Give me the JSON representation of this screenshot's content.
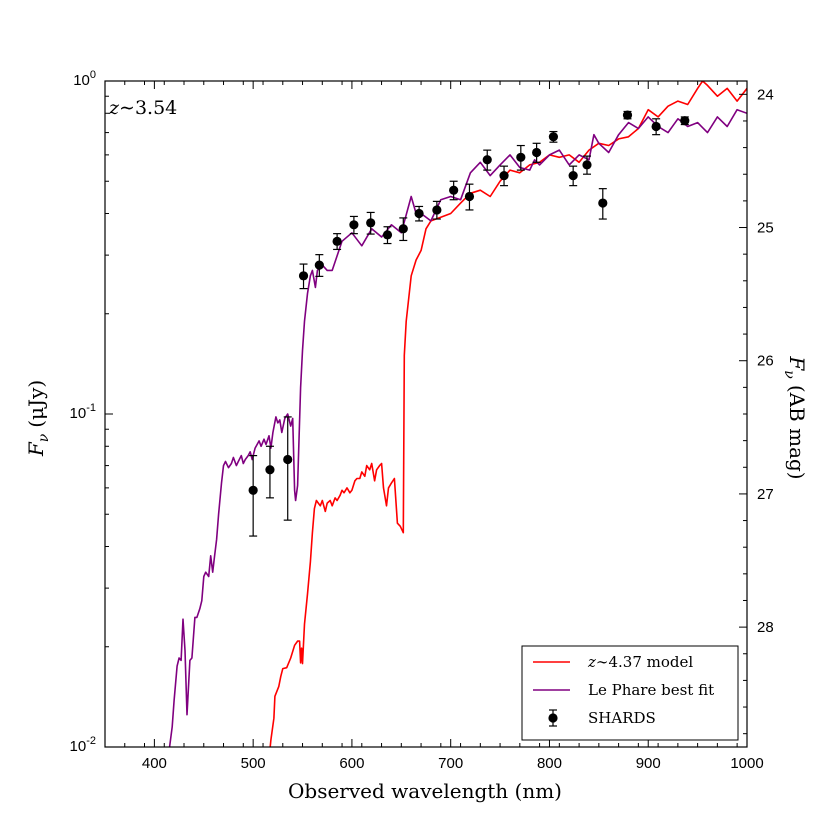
{
  "chart_data": {
    "type": "line",
    "xlabel": "Observed wavelength (nm)",
    "ylabel_left_main": "F",
    "ylabel_left_sub": "ν",
    "ylabel_left_unit": "(μJy)",
    "ylabel_right_main": "F",
    "ylabel_right_sub": "ν",
    "ylabel_right_unit": "(AB mag)",
    "xlim": [
      350,
      1000
    ],
    "ylim": [
      0.01,
      1.0
    ],
    "yscale": "log",
    "right_ylim_mag": [
      28.9,
      23.9
    ],
    "xticks": [
      400,
      500,
      600,
      700,
      800,
      900,
      1000
    ],
    "yticks_left": [
      {
        "value": 1.0,
        "base": "10",
        "exp": "0"
      },
      {
        "value": 0.1,
        "base": "10",
        "exp": "-1"
      },
      {
        "value": 0.01,
        "base": "10",
        "exp": "-2"
      }
    ],
    "yticks_right": [
      24,
      25,
      26,
      27,
      28
    ],
    "annotation": {
      "prefix": "z",
      "tilde": "∼",
      "value": "3.54"
    },
    "legend": [
      {
        "label_prefix": "z",
        "label": "∼4.37 model",
        "color": "#ff0000",
        "kind": "line"
      },
      {
        "label_prefix": "",
        "label": "Le Phare best fit",
        "color": "#800080",
        "kind": "line"
      },
      {
        "label_prefix": "",
        "label": "SHARDS",
        "color": "#000000",
        "kind": "errorbar"
      }
    ],
    "series": [
      {
        "name": "z~4.37 model",
        "color": "#ff0000",
        "x": [
          517,
          518,
          521,
          522,
          526,
          528,
          530,
          534,
          538,
          542,
          545,
          547,
          548,
          549,
          550,
          552,
          555,
          558,
          560,
          562,
          564,
          566,
          568,
          570,
          573,
          575,
          578,
          580,
          583,
          585,
          588,
          590,
          592,
          595,
          598,
          600,
          603,
          605,
          608,
          610,
          613,
          615,
          618,
          620,
          623,
          625,
          628,
          630,
          632,
          635,
          637,
          640,
          643,
          646,
          649,
          652,
          653,
          655,
          660,
          665,
          670,
          675,
          680,
          690,
          700,
          710,
          720,
          730,
          740,
          750,
          760,
          770,
          780,
          790,
          800,
          810,
          820,
          830,
          840,
          850,
          860,
          870,
          880,
          890,
          900,
          910,
          920,
          930,
          940,
          950,
          955,
          960,
          970,
          980,
          990,
          1000
        ],
        "y": [
          0.0098,
          0.0105,
          0.0122,
          0.0142,
          0.0152,
          0.0163,
          0.0172,
          0.0173,
          0.0185,
          0.0202,
          0.0208,
          0.0208,
          0.0179,
          0.0198,
          0.0178,
          0.0234,
          0.0288,
          0.036,
          0.044,
          0.052,
          0.055,
          0.054,
          0.053,
          0.055,
          0.051,
          0.054,
          0.055,
          0.053,
          0.056,
          0.055,
          0.057,
          0.059,
          0.058,
          0.06,
          0.058,
          0.059,
          0.063,
          0.064,
          0.064,
          0.067,
          0.065,
          0.07,
          0.068,
          0.071,
          0.063,
          0.068,
          0.07,
          0.071,
          0.06,
          0.053,
          0.06,
          0.062,
          0.064,
          0.047,
          0.046,
          0.044,
          0.15,
          0.19,
          0.26,
          0.29,
          0.31,
          0.36,
          0.38,
          0.39,
          0.4,
          0.43,
          0.46,
          0.47,
          0.45,
          0.5,
          0.54,
          0.53,
          0.56,
          0.57,
          0.6,
          0.59,
          0.6,
          0.57,
          0.62,
          0.65,
          0.64,
          0.67,
          0.68,
          0.72,
          0.82,
          0.78,
          0.84,
          0.87,
          0.85,
          0.95,
          1.0,
          0.97,
          0.9,
          0.95,
          0.87,
          0.95
        ]
      },
      {
        "name": "Le Phare best fit",
        "color": "#800080",
        "x": [
          415,
          418,
          420,
          423,
          425,
          427,
          429,
          431,
          433,
          436,
          438,
          441,
          443,
          446,
          448,
          450,
          452,
          455,
          457,
          459,
          461,
          463,
          465,
          468,
          470,
          472,
          475,
          478,
          480,
          483,
          485,
          488,
          490,
          492,
          495,
          497,
          499,
          502,
          504,
          506,
          508,
          511,
          513,
          516,
          518,
          520,
          523,
          525,
          527,
          529,
          532,
          535,
          538,
          540,
          542,
          543,
          545,
          548,
          550,
          552,
          555,
          558,
          560,
          563,
          565,
          570,
          575,
          580,
          590,
          600,
          610,
          620,
          630,
          640,
          650,
          660,
          665,
          670,
          680,
          690,
          700,
          710,
          720,
          730,
          740,
          750,
          760,
          770,
          780,
          785,
          790,
          800,
          810,
          820,
          830,
          840,
          845,
          850,
          860,
          870,
          880,
          890,
          900,
          910,
          920,
          930,
          940,
          950,
          960,
          970,
          980,
          990,
          1000
        ],
        "y": [
          0.0098,
          0.0115,
          0.0138,
          0.0175,
          0.0185,
          0.0182,
          0.0242,
          0.0195,
          0.0125,
          0.0182,
          0.0185,
          0.0245,
          0.0245,
          0.026,
          0.0275,
          0.0325,
          0.0335,
          0.0325,
          0.0375,
          0.0335,
          0.0375,
          0.042,
          0.05,
          0.062,
          0.07,
          0.072,
          0.069,
          0.071,
          0.074,
          0.07,
          0.072,
          0.075,
          0.071,
          0.073,
          0.075,
          0.077,
          0.073,
          0.079,
          0.081,
          0.083,
          0.08,
          0.084,
          0.081,
          0.086,
          0.079,
          0.088,
          0.098,
          0.094,
          0.096,
          0.088,
          0.097,
          0.1,
          0.092,
          0.097,
          0.059,
          0.055,
          0.061,
          0.12,
          0.155,
          0.19,
          0.23,
          0.26,
          0.27,
          0.24,
          0.27,
          0.28,
          0.27,
          0.27,
          0.33,
          0.35,
          0.32,
          0.36,
          0.34,
          0.37,
          0.35,
          0.45,
          0.4,
          0.4,
          0.38,
          0.44,
          0.45,
          0.44,
          0.53,
          0.57,
          0.52,
          0.56,
          0.6,
          0.55,
          0.54,
          0.58,
          0.56,
          0.6,
          0.62,
          0.56,
          0.6,
          0.58,
          0.69,
          0.65,
          0.61,
          0.69,
          0.75,
          0.72,
          0.78,
          0.73,
          0.7,
          0.77,
          0.73,
          0.75,
          0.7,
          0.78,
          0.73,
          0.82,
          0.8
        ]
      },
      {
        "name": "SHARDS",
        "color": "#000000",
        "type": "errorbar",
        "x": [
          500,
          517,
          535,
          551,
          567,
          585,
          602,
          619,
          636,
          652,
          668,
          686,
          703,
          719,
          737,
          754,
          771,
          787,
          804,
          824,
          838,
          854,
          879,
          908,
          937
        ],
        "y": [
          0.059,
          0.068,
          0.073,
          0.26,
          0.28,
          0.33,
          0.37,
          0.375,
          0.345,
          0.36,
          0.4,
          0.41,
          0.47,
          0.45,
          0.58,
          0.52,
          0.59,
          0.61,
          0.68,
          0.52,
          0.56,
          0.43,
          0.79,
          0.73,
          0.76
        ],
        "err": [
          0.016,
          0.012,
          0.025,
          0.022,
          0.021,
          0.018,
          0.022,
          0.028,
          0.02,
          0.028,
          0.02,
          0.025,
          0.03,
          0.04,
          0.04,
          0.035,
          0.05,
          0.04,
          0.025,
          0.035,
          0.035,
          0.045,
          0.02,
          0.04,
          0.02
        ]
      }
    ]
  }
}
